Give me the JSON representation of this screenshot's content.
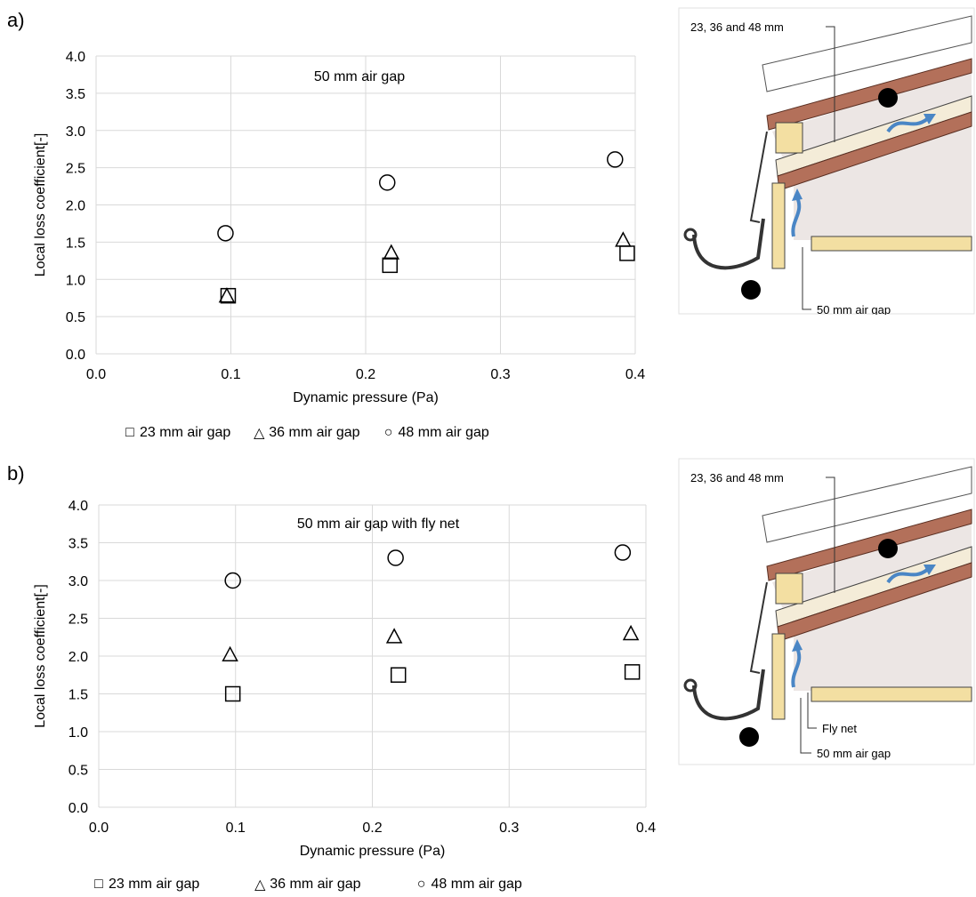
{
  "panels": [
    {
      "label": "a)"
    },
    {
      "label": "b)"
    }
  ],
  "chart_data": [
    {
      "type": "scatter",
      "title": "50 mm air gap",
      "xlabel": "Dynamic pressure (Pa)",
      "ylabel": "Local loss coefficient[-]",
      "xlim": [
        0,
        0.4
      ],
      "ylim": [
        0,
        4.0
      ],
      "xticks": [
        "0.0",
        "0.1",
        "0.2",
        "0.3",
        "0.4"
      ],
      "yticks": [
        "0.0",
        "0.5",
        "1.0",
        "1.5",
        "2.0",
        "2.5",
        "3.0",
        "3.5",
        "4.0"
      ],
      "grid": true,
      "legend_position": "bottom",
      "series": [
        {
          "name": "23 mm air gap",
          "marker": "square",
          "x": [
            0.098,
            0.218,
            0.394
          ],
          "y": [
            0.78,
            1.19,
            1.35
          ]
        },
        {
          "name": "36 mm air gap",
          "marker": "triangle",
          "x": [
            0.097,
            0.219,
            0.391
          ],
          "y": [
            0.78,
            1.36,
            1.53
          ]
        },
        {
          "name": "48 mm air gap",
          "marker": "circle",
          "x": [
            0.096,
            0.216,
            0.385
          ],
          "y": [
            1.62,
            2.3,
            2.61
          ]
        }
      ]
    },
    {
      "type": "scatter",
      "title": "50 mm air gap with fly net",
      "xlabel": "Dynamic pressure (Pa)",
      "ylabel": "Local loss coefficient[-]",
      "xlim": [
        0,
        0.4
      ],
      "ylim": [
        0,
        4.0
      ],
      "xticks": [
        "0.0",
        "0.1",
        "0.2",
        "0.3",
        "0.4"
      ],
      "yticks": [
        "0.0",
        "0.5",
        "1.0",
        "1.5",
        "2.0",
        "2.5",
        "3.0",
        "3.5",
        "4.0"
      ],
      "grid": true,
      "legend_position": "bottom",
      "series": [
        {
          "name": "23 mm air gap",
          "marker": "square",
          "x": [
            0.098,
            0.219,
            0.39
          ],
          "y": [
            1.5,
            1.75,
            1.79
          ]
        },
        {
          "name": "36 mm air gap",
          "marker": "triangle",
          "x": [
            0.096,
            0.216,
            0.389
          ],
          "y": [
            2.02,
            2.26,
            2.3
          ]
        },
        {
          "name": "48 mm air gap",
          "marker": "circle",
          "x": [
            0.098,
            0.217,
            0.383
          ],
          "y": [
            3.0,
            3.3,
            3.37
          ]
        }
      ]
    }
  ],
  "diagrams": [
    {
      "top_label": "23, 36 and 48 mm",
      "bottom_labels": [
        "50 mm air gap"
      ]
    },
    {
      "top_label": "23, 36 and 48 mm",
      "bottom_labels": [
        "Fly net",
        "50 mm air gap"
      ]
    }
  ],
  "colors": {
    "grid": "#d9d9d9",
    "airflow_arrow": "#4a86c5",
    "wood": "#f3dfa2",
    "tile": "#b3705a",
    "underlay": "#f4ecd8",
    "wall": "#ece6e4"
  }
}
